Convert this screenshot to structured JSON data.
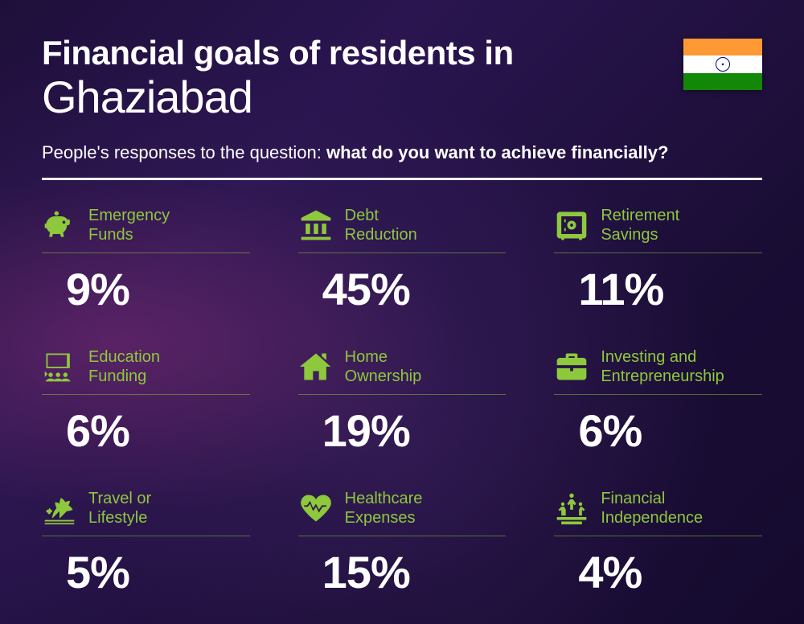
{
  "header": {
    "title_line1": "Financial goals of residents in",
    "title_line2": "Ghaziabad",
    "subtitle_prefix": "People's responses to the question: ",
    "subtitle_bold": "what do you want to achieve financially?"
  },
  "colors": {
    "accent": "#8ec83c",
    "text": "#ffffff",
    "flag_saffron": "#ff9933",
    "flag_white": "#ffffff",
    "flag_green": "#138808",
    "flag_chakra": "#000080"
  },
  "items": [
    {
      "icon": "piggy-bank-icon",
      "label": "Emergency\nFunds",
      "value": "9%"
    },
    {
      "icon": "bank-icon",
      "label": "Debt\nReduction",
      "value": "45%"
    },
    {
      "icon": "safe-icon",
      "label": "Retirement\nSavings",
      "value": "11%"
    },
    {
      "icon": "education-icon",
      "label": "Education\nFunding",
      "value": "6%"
    },
    {
      "icon": "house-icon",
      "label": "Home\nOwnership",
      "value": "19%"
    },
    {
      "icon": "briefcase-icon",
      "label": "Investing and\nEntrepreneurship",
      "value": "6%"
    },
    {
      "icon": "travel-icon",
      "label": "Travel or\nLifestyle",
      "value": "5%"
    },
    {
      "icon": "heart-pulse-icon",
      "label": "Healthcare\nExpenses",
      "value": "15%"
    },
    {
      "icon": "independence-icon",
      "label": "Financial\nIndependence",
      "value": "4%"
    }
  ]
}
